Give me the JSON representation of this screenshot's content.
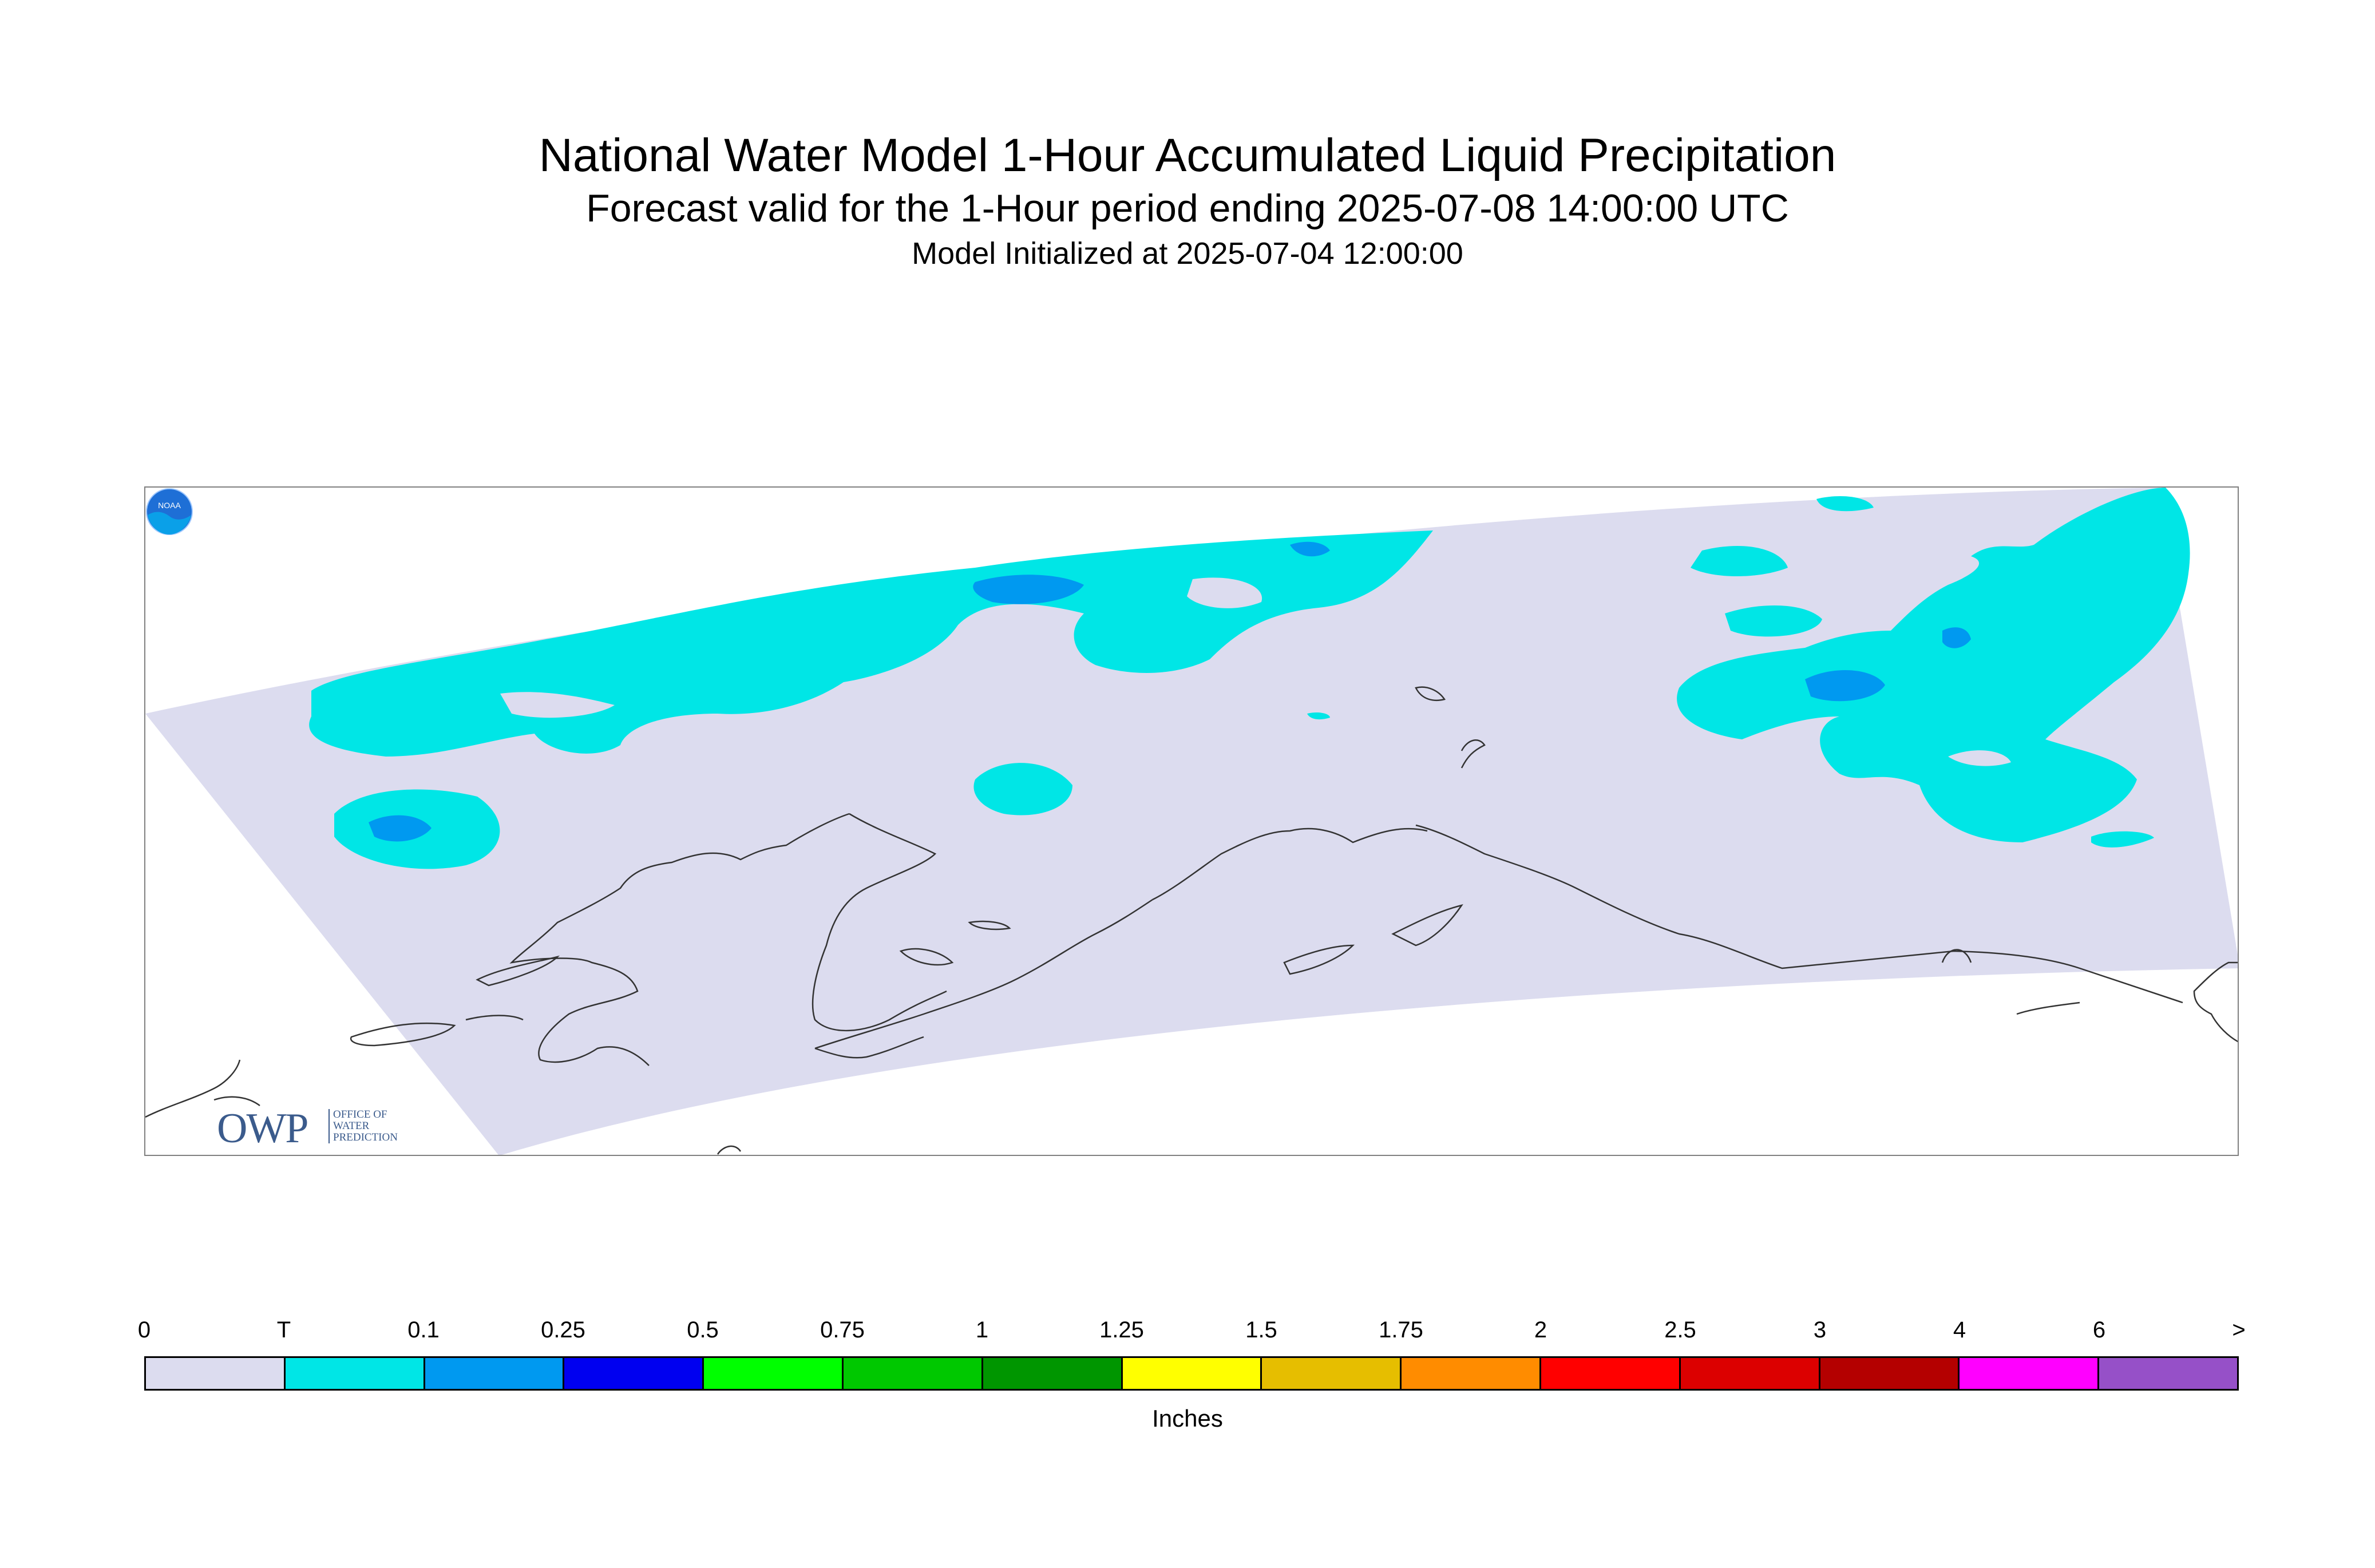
{
  "header": {
    "title": "National Water Model 1-Hour Accumulated Liquid Precipitation",
    "subtitle": "Forecast valid for the 1-Hour period ending 2025-07-08 14:00:00 UTC",
    "init_line": "Model Initialized at 2025-07-04 12:00:00"
  },
  "map": {
    "region_description_shown": "",
    "domain_fill_color": "#dcdcef",
    "coastline_color": "#333333"
  },
  "logos": {
    "owp_mark": "OWP",
    "owp_text_1": "OFFICE OF",
    "owp_text_2": "WATER",
    "owp_text_3": "PREDICTION",
    "noaa_mark": "NOAA"
  },
  "legend": {
    "tick_labels": [
      "0",
      "T",
      "0.1",
      "0.25",
      "0.5",
      "0.75",
      "1",
      "1.25",
      "1.5",
      "1.75",
      "2",
      "2.5",
      "3",
      "4",
      "6",
      ">"
    ],
    "colors": [
      "#dcdcef",
      "#00e6e6",
      "#0099f0",
      "#0000f0",
      "#00ff00",
      "#00c800",
      "#009600",
      "#ffff00",
      "#e6be00",
      "#ff8c00",
      "#ff0000",
      "#dc0000",
      "#b40000",
      "#ff00ff",
      "#9650c8"
    ],
    "units": "Inches"
  }
}
